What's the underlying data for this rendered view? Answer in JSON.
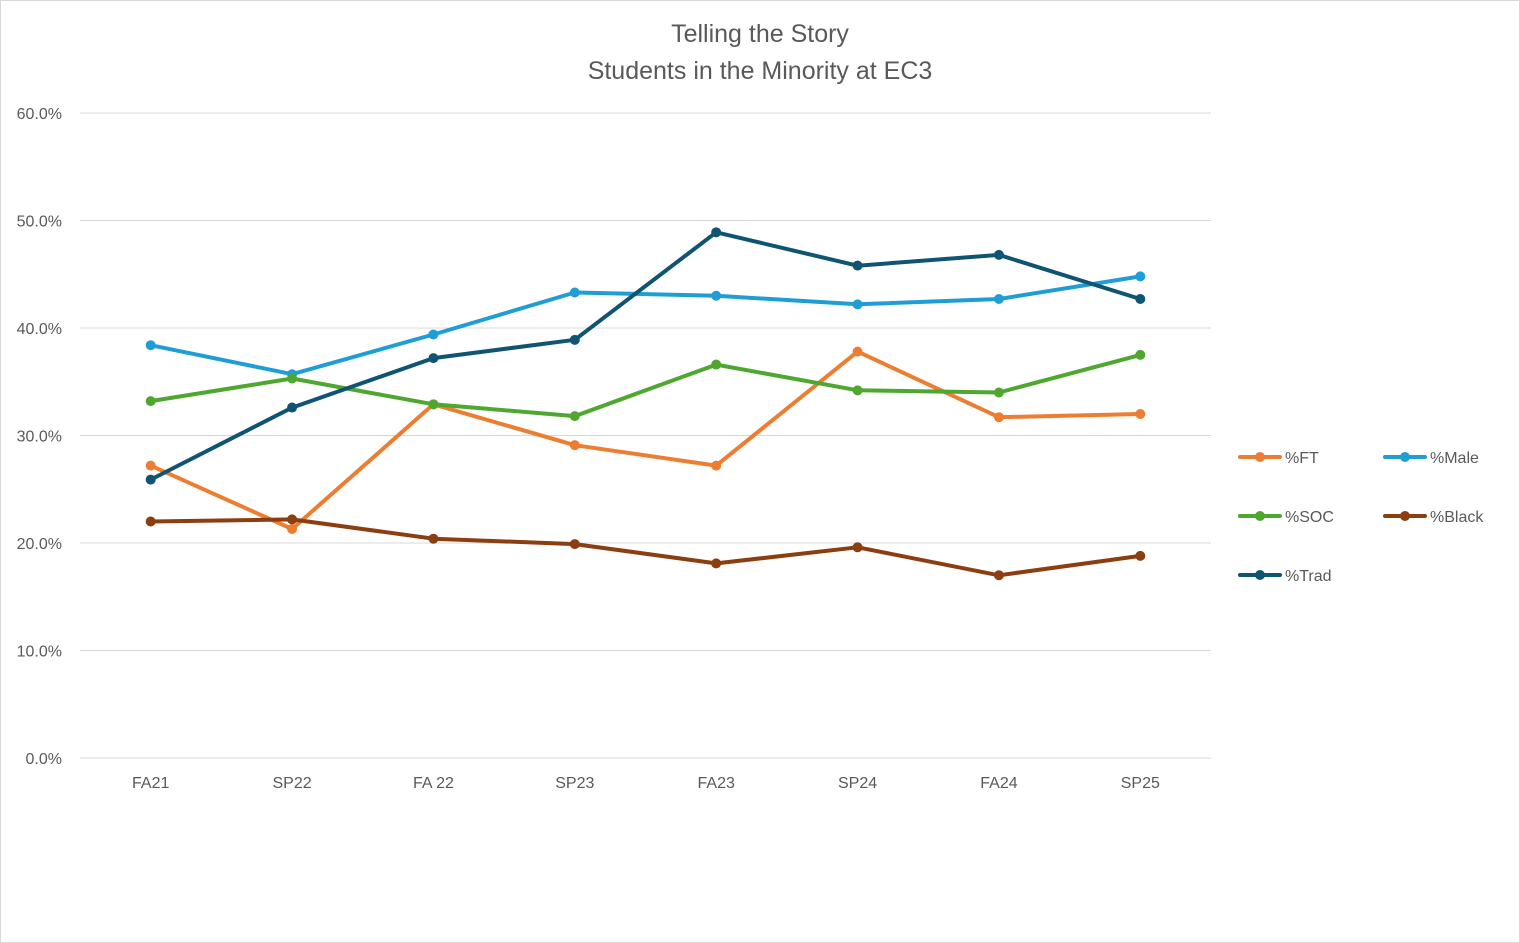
{
  "chart_data": {
    "type": "line",
    "title": "Telling the Story",
    "subtitle": "Students in the Minority at EC3",
    "xlabel": "",
    "ylabel": "",
    "ylim": [
      0,
      60
    ],
    "yticks": [
      "0.0%",
      "10.0%",
      "20.0%",
      "30.0%",
      "40.0%",
      "50.0%",
      "60.0%"
    ],
    "ytick_values": [
      0,
      10,
      20,
      30,
      40,
      50,
      60
    ],
    "grid": true,
    "legend_position": "right",
    "categories": [
      "FA21",
      "SP22",
      "FA 22",
      "SP23",
      "FA23",
      "SP24",
      "FA24",
      "SP25"
    ],
    "series": [
      {
        "name": "%FT",
        "color": "#ED7D31",
        "values": [
          27.2,
          21.3,
          32.9,
          29.1,
          27.2,
          37.8,
          31.7,
          32.0
        ]
      },
      {
        "name": "%Male",
        "color": "#1F9ED5",
        "values": [
          38.4,
          35.7,
          39.4,
          43.3,
          43.0,
          42.2,
          42.7,
          44.8
        ]
      },
      {
        "name": "%SOC",
        "color": "#4EA72E",
        "values": [
          33.2,
          35.3,
          32.9,
          31.8,
          36.6,
          34.2,
          34.0,
          37.5
        ]
      },
      {
        "name": "%Black",
        "color": "#8B3E0F",
        "values": [
          22.0,
          22.2,
          20.4,
          19.9,
          18.1,
          19.6,
          17.0,
          18.8
        ]
      },
      {
        "name": "%Trad",
        "color": "#0F5473",
        "values": [
          25.9,
          32.6,
          37.2,
          38.9,
          48.9,
          45.8,
          46.8,
          42.7
        ]
      }
    ]
  }
}
